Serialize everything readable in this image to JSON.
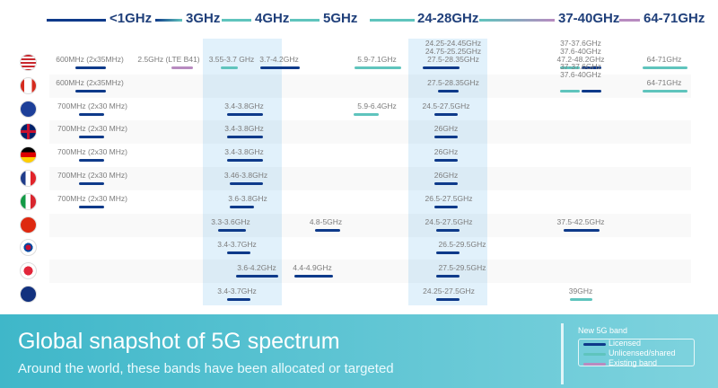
{
  "colors": {
    "licensed": "#0e3a8a",
    "unlicensed": "#5fc4bd",
    "existing": "#b88bc0",
    "header": "#1f3f7a",
    "highlight": "#e1f1fb"
  },
  "header": {
    "bands": [
      "<1GHz",
      "3GHz",
      "4GHz",
      "5GHz",
      "24-28GHz",
      "37-40GHz",
      "64-71GHz"
    ]
  },
  "chart_data": {
    "type": "table",
    "columns": [
      "<1GHz",
      "3GHz",
      "4GHz",
      "5GHz",
      "24-28GHz",
      "37-40GHz",
      "64-71GHz"
    ],
    "rows": [
      {
        "country": "United States",
        "flag": "us-flag-icon",
        "items": [
          {
            "text": "600MHz (2x35MHz)",
            "band": "licensed"
          },
          {
            "text": "2.5GHz (LTE B41)",
            "band": "existing"
          },
          {
            "text": "3.55-3.7 GHz",
            "band": "unlicensed"
          },
          {
            "text": "3.7-4.2GHz",
            "band": "licensed"
          },
          {
            "text": "5.9-7.1GHz",
            "band": "unlicensed"
          },
          {
            "text": "24.25-24.45GHz\n24.75-25.25GHz\n27.5-28.35GHz",
            "band": "licensed"
          },
          {
            "text": "37-37.6GHz\n37.6-40GHz\n47.2-48.2GHz",
            "band": "unlicensed+licensed"
          },
          {
            "text": "64-71GHz",
            "band": "unlicensed"
          }
        ]
      },
      {
        "country": "Canada",
        "flag": "canada-flag-icon",
        "items": [
          {
            "text": "600MHz (2x35MHz)",
            "band": "licensed"
          },
          {
            "text": "27.5-28.35GHz",
            "band": "licensed"
          },
          {
            "text": "37-37.6GHz\n37.6-40GHz",
            "band": "unlicensed+licensed"
          },
          {
            "text": "64-71GHz",
            "band": "unlicensed"
          }
        ]
      },
      {
        "country": "European Union",
        "flag": "eu-flag-icon",
        "items": [
          {
            "text": "700MHz (2x30 MHz)",
            "band": "licensed"
          },
          {
            "text": "3.4-3.8GHz",
            "band": "licensed"
          },
          {
            "text": "5.9-6.4GHz",
            "band": "unlicensed"
          },
          {
            "text": "24.5-27.5GHz",
            "band": "licensed"
          }
        ]
      },
      {
        "country": "United Kingdom",
        "flag": "uk-flag-icon",
        "items": [
          {
            "text": "700MHz (2x30 MHz)",
            "band": "licensed"
          },
          {
            "text": "3.4-3.8GHz",
            "band": "licensed"
          },
          {
            "text": "26GHz",
            "band": "licensed"
          }
        ]
      },
      {
        "country": "Germany",
        "flag": "germany-flag-icon",
        "items": [
          {
            "text": "700MHz (2x30 MHz)",
            "band": "licensed"
          },
          {
            "text": "3.4-3.8GHz",
            "band": "licensed"
          },
          {
            "text": "26GHz",
            "band": "licensed"
          }
        ]
      },
      {
        "country": "France",
        "flag": "france-flag-icon",
        "items": [
          {
            "text": "700MHz (2x30 MHz)",
            "band": "licensed"
          },
          {
            "text": "3.46-3.8GHz",
            "band": "licensed"
          },
          {
            "text": "26GHz",
            "band": "licensed"
          }
        ]
      },
      {
        "country": "Italy",
        "flag": "italy-flag-icon",
        "items": [
          {
            "text": "700MHz (2x30 MHz)",
            "band": "licensed"
          },
          {
            "text": "3.6-3.8GHz",
            "band": "licensed"
          },
          {
            "text": "26.5-27.5GHz",
            "band": "licensed"
          }
        ]
      },
      {
        "country": "China",
        "flag": "china-flag-icon",
        "items": [
          {
            "text": "3.3-3.6GHz",
            "band": "licensed"
          },
          {
            "text": "4.8-5GHz",
            "band": "licensed"
          },
          {
            "text": "24.5-27.5GHz",
            "band": "licensed"
          },
          {
            "text": "37.5-42.5GHz",
            "band": "licensed"
          }
        ]
      },
      {
        "country": "South Korea",
        "flag": "korea-flag-icon",
        "items": [
          {
            "text": "3.4-3.7GHz",
            "band": "licensed"
          },
          {
            "text": "26.5-29.5GHz",
            "band": "licensed"
          }
        ]
      },
      {
        "country": "Japan",
        "flag": "japan-flag-icon",
        "items": [
          {
            "text": "3.6-4.2GHz",
            "band": "licensed"
          },
          {
            "text": "4.4-4.9GHz",
            "band": "licensed"
          },
          {
            "text": "27.5-29.5GHz",
            "band": "licensed"
          }
        ]
      },
      {
        "country": "Australia",
        "flag": "australia-flag-icon",
        "items": [
          {
            "text": "3.4-3.7GHz",
            "band": "licensed"
          },
          {
            "text": "24.25-27.5GHz",
            "band": "licensed"
          },
          {
            "text": "39GHz",
            "band": "unlicensed"
          }
        ]
      }
    ]
  },
  "banner": {
    "title": "Global snapshot of 5G spectrum",
    "subtitle": "Around the world, these bands have been allocated or targeted"
  },
  "legend": {
    "title": "New 5G band",
    "items": [
      {
        "label": "Licensed",
        "band": "licensed"
      },
      {
        "label": "Unlicensed/shared",
        "band": "unlicensed"
      },
      {
        "label": "Existing band",
        "band": "existing"
      }
    ]
  }
}
